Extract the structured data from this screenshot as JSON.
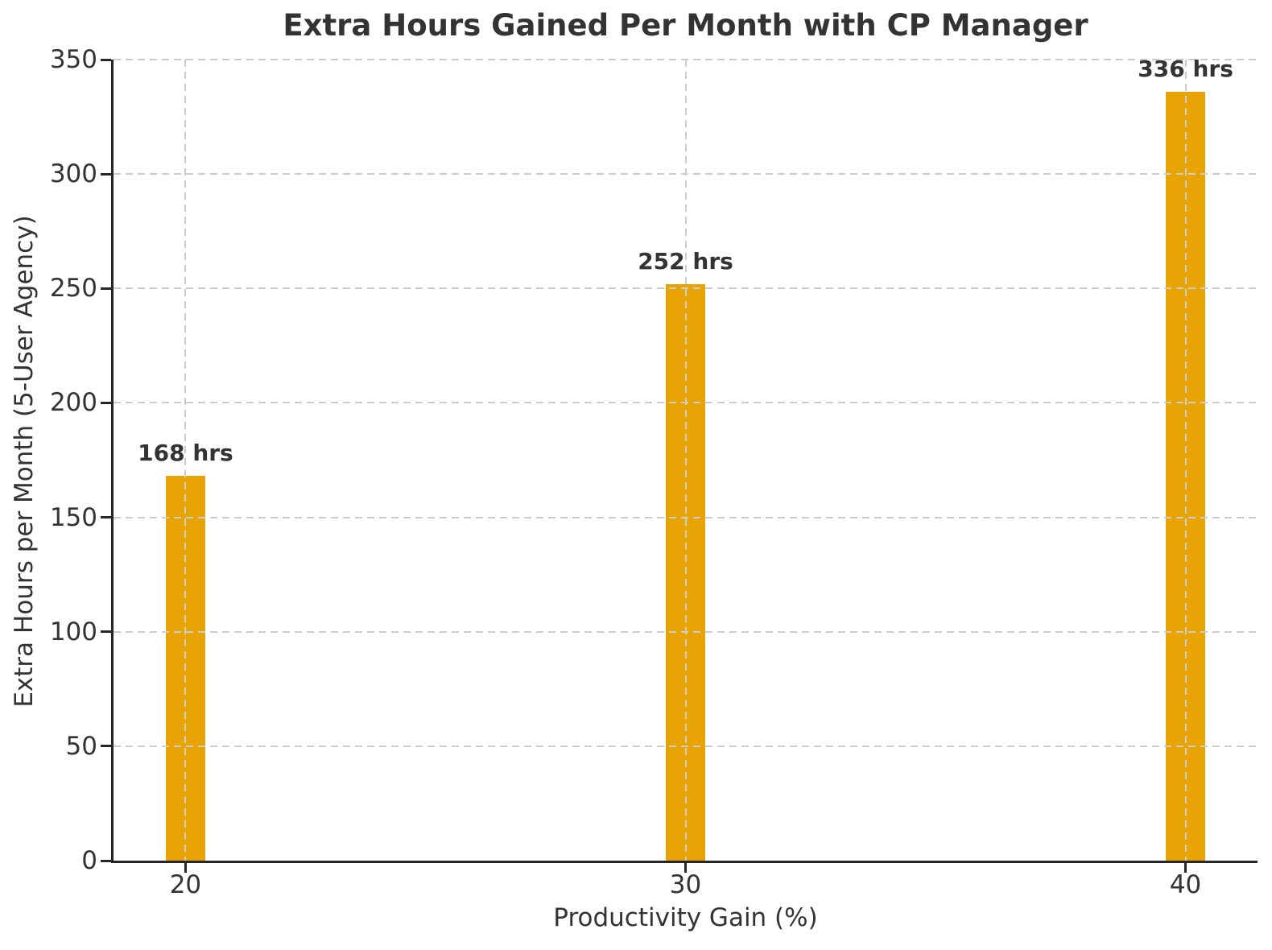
{
  "chart_data": {
    "type": "bar",
    "title": "Extra Hours Gained Per Month with CP Manager",
    "xlabel": "Productivity Gain (%)",
    "ylabel": "Extra Hours per Month (5-User Agency)",
    "categories": [
      "20",
      "30",
      "40"
    ],
    "x": [
      20,
      30,
      40
    ],
    "values": [
      168,
      252,
      336
    ],
    "bar_labels": [
      "168 hrs",
      "252 hrs",
      "336 hrs"
    ],
    "bar_width_units": 0.8,
    "xlim": [
      18.56,
      41.44
    ],
    "ylim": [
      0,
      350
    ],
    "y_ticks": [
      0,
      50,
      100,
      150,
      200,
      250,
      300,
      350
    ],
    "grid": {
      "style": "dashed",
      "axis": "both",
      "above_bars": true
    },
    "legend_position": "none",
    "colors": {
      "bar": "#E8A404",
      "spine": "#262626",
      "grid": "#CCCCCC",
      "text": "#333333"
    }
  }
}
